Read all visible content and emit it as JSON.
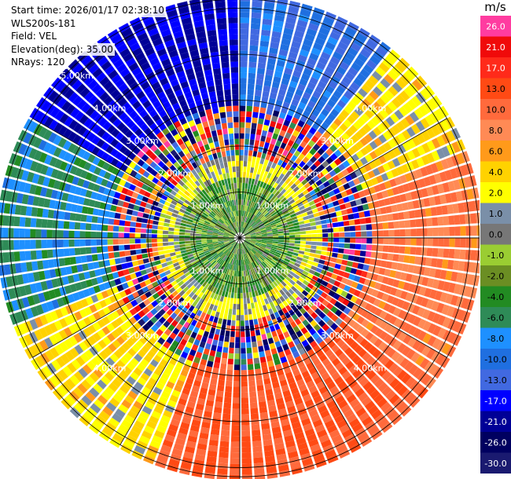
{
  "header": {
    "start_time": "Start time: 2026/01/17 02:38:10",
    "instrument": "WLS200s-181",
    "field": "Field: VEL",
    "elevation": "Elevation(deg): 35.00",
    "nrays": "NRays: 120"
  },
  "colorbar": {
    "unit": "m/s",
    "bins": [
      {
        "label": "26.0",
        "color": "#ff3ca0"
      },
      {
        "label": "21.0",
        "color": "#f00a0a"
      },
      {
        "label": "17.0",
        "color": "#ff2a1a"
      },
      {
        "label": "13.0",
        "color": "#ff4a14"
      },
      {
        "label": "10.0",
        "color": "#ff6a3c"
      },
      {
        "label": "8.0",
        "color": "#ff8a55"
      },
      {
        "label": "6.0",
        "color": "#ff9a1a"
      },
      {
        "label": "4.0",
        "color": "#ffd200"
      },
      {
        "label": "2.0",
        "color": "#ffff00"
      },
      {
        "label": "1.0",
        "color": "#7a8fa8"
      },
      {
        "label": "0.0",
        "color": "#777777"
      },
      {
        "label": "-1.0",
        "color": "#9acd32"
      },
      {
        "label": "-2.0",
        "color": "#6b8e23"
      },
      {
        "label": "-4.0",
        "color": "#228b22"
      },
      {
        "label": "-6.0",
        "color": "#2e8b57"
      },
      {
        "label": "-8.0",
        "color": "#1e90ff"
      },
      {
        "label": "-10.0",
        "color": "#1f6fe0"
      },
      {
        "label": "-13.0",
        "color": "#4169e1"
      },
      {
        "label": "-17.0",
        "color": "#0000ff"
      },
      {
        "label": "-21.0",
        "color": "#000096"
      },
      {
        "label": "-26.0",
        "color": "#000060"
      },
      {
        "label": "-30.0",
        "color": "#1a1a70"
      }
    ]
  },
  "chart_data": {
    "type": "heatmap",
    "projection": "polar PPI",
    "field": "VEL",
    "n_rays": 120,
    "range_rings_km": [
      1,
      2,
      3,
      4,
      5
    ],
    "range_labels": [
      "1.00km",
      "2.00km",
      "3.00km",
      "4.00km",
      "5.00km"
    ],
    "grid": true,
    "sectors": [
      {
        "azimuth_deg": [
          300,
          360
        ],
        "range_km": [
          2.8,
          5.3
        ],
        "velocity_m_s": -17.0
      },
      {
        "azimuth_deg": [
          0,
          40
        ],
        "range_km": [
          2.8,
          5.3
        ],
        "velocity_m_s": -10.0
      },
      {
        "azimuth_deg": [
          40,
          70
        ],
        "range_km": [
          2.8,
          5.3
        ],
        "velocity_m_s": 4.0
      },
      {
        "azimuth_deg": [
          70,
          130
        ],
        "range_km": [
          2.8,
          5.3
        ],
        "velocity_m_s": 10.0
      },
      {
        "azimuth_deg": [
          130,
          200
        ],
        "range_km": [
          2.8,
          5.3
        ],
        "velocity_m_s": 13.0
      },
      {
        "azimuth_deg": [
          200,
          250
        ],
        "range_km": [
          2.8,
          5.3
        ],
        "velocity_m_s": 4.0
      },
      {
        "azimuth_deg": [
          250,
          300
        ],
        "range_km": [
          2.8,
          5.3
        ],
        "velocity_m_s": -6.0
      },
      {
        "azimuth_deg": [
          0,
          360
        ],
        "range_km": [
          0,
          1.3
        ],
        "velocity_m_s": -2.0
      },
      {
        "azimuth_deg": [
          0,
          360
        ],
        "range_km": [
          1.3,
          1.9
        ],
        "velocity_m_s": 2.0
      }
    ]
  }
}
